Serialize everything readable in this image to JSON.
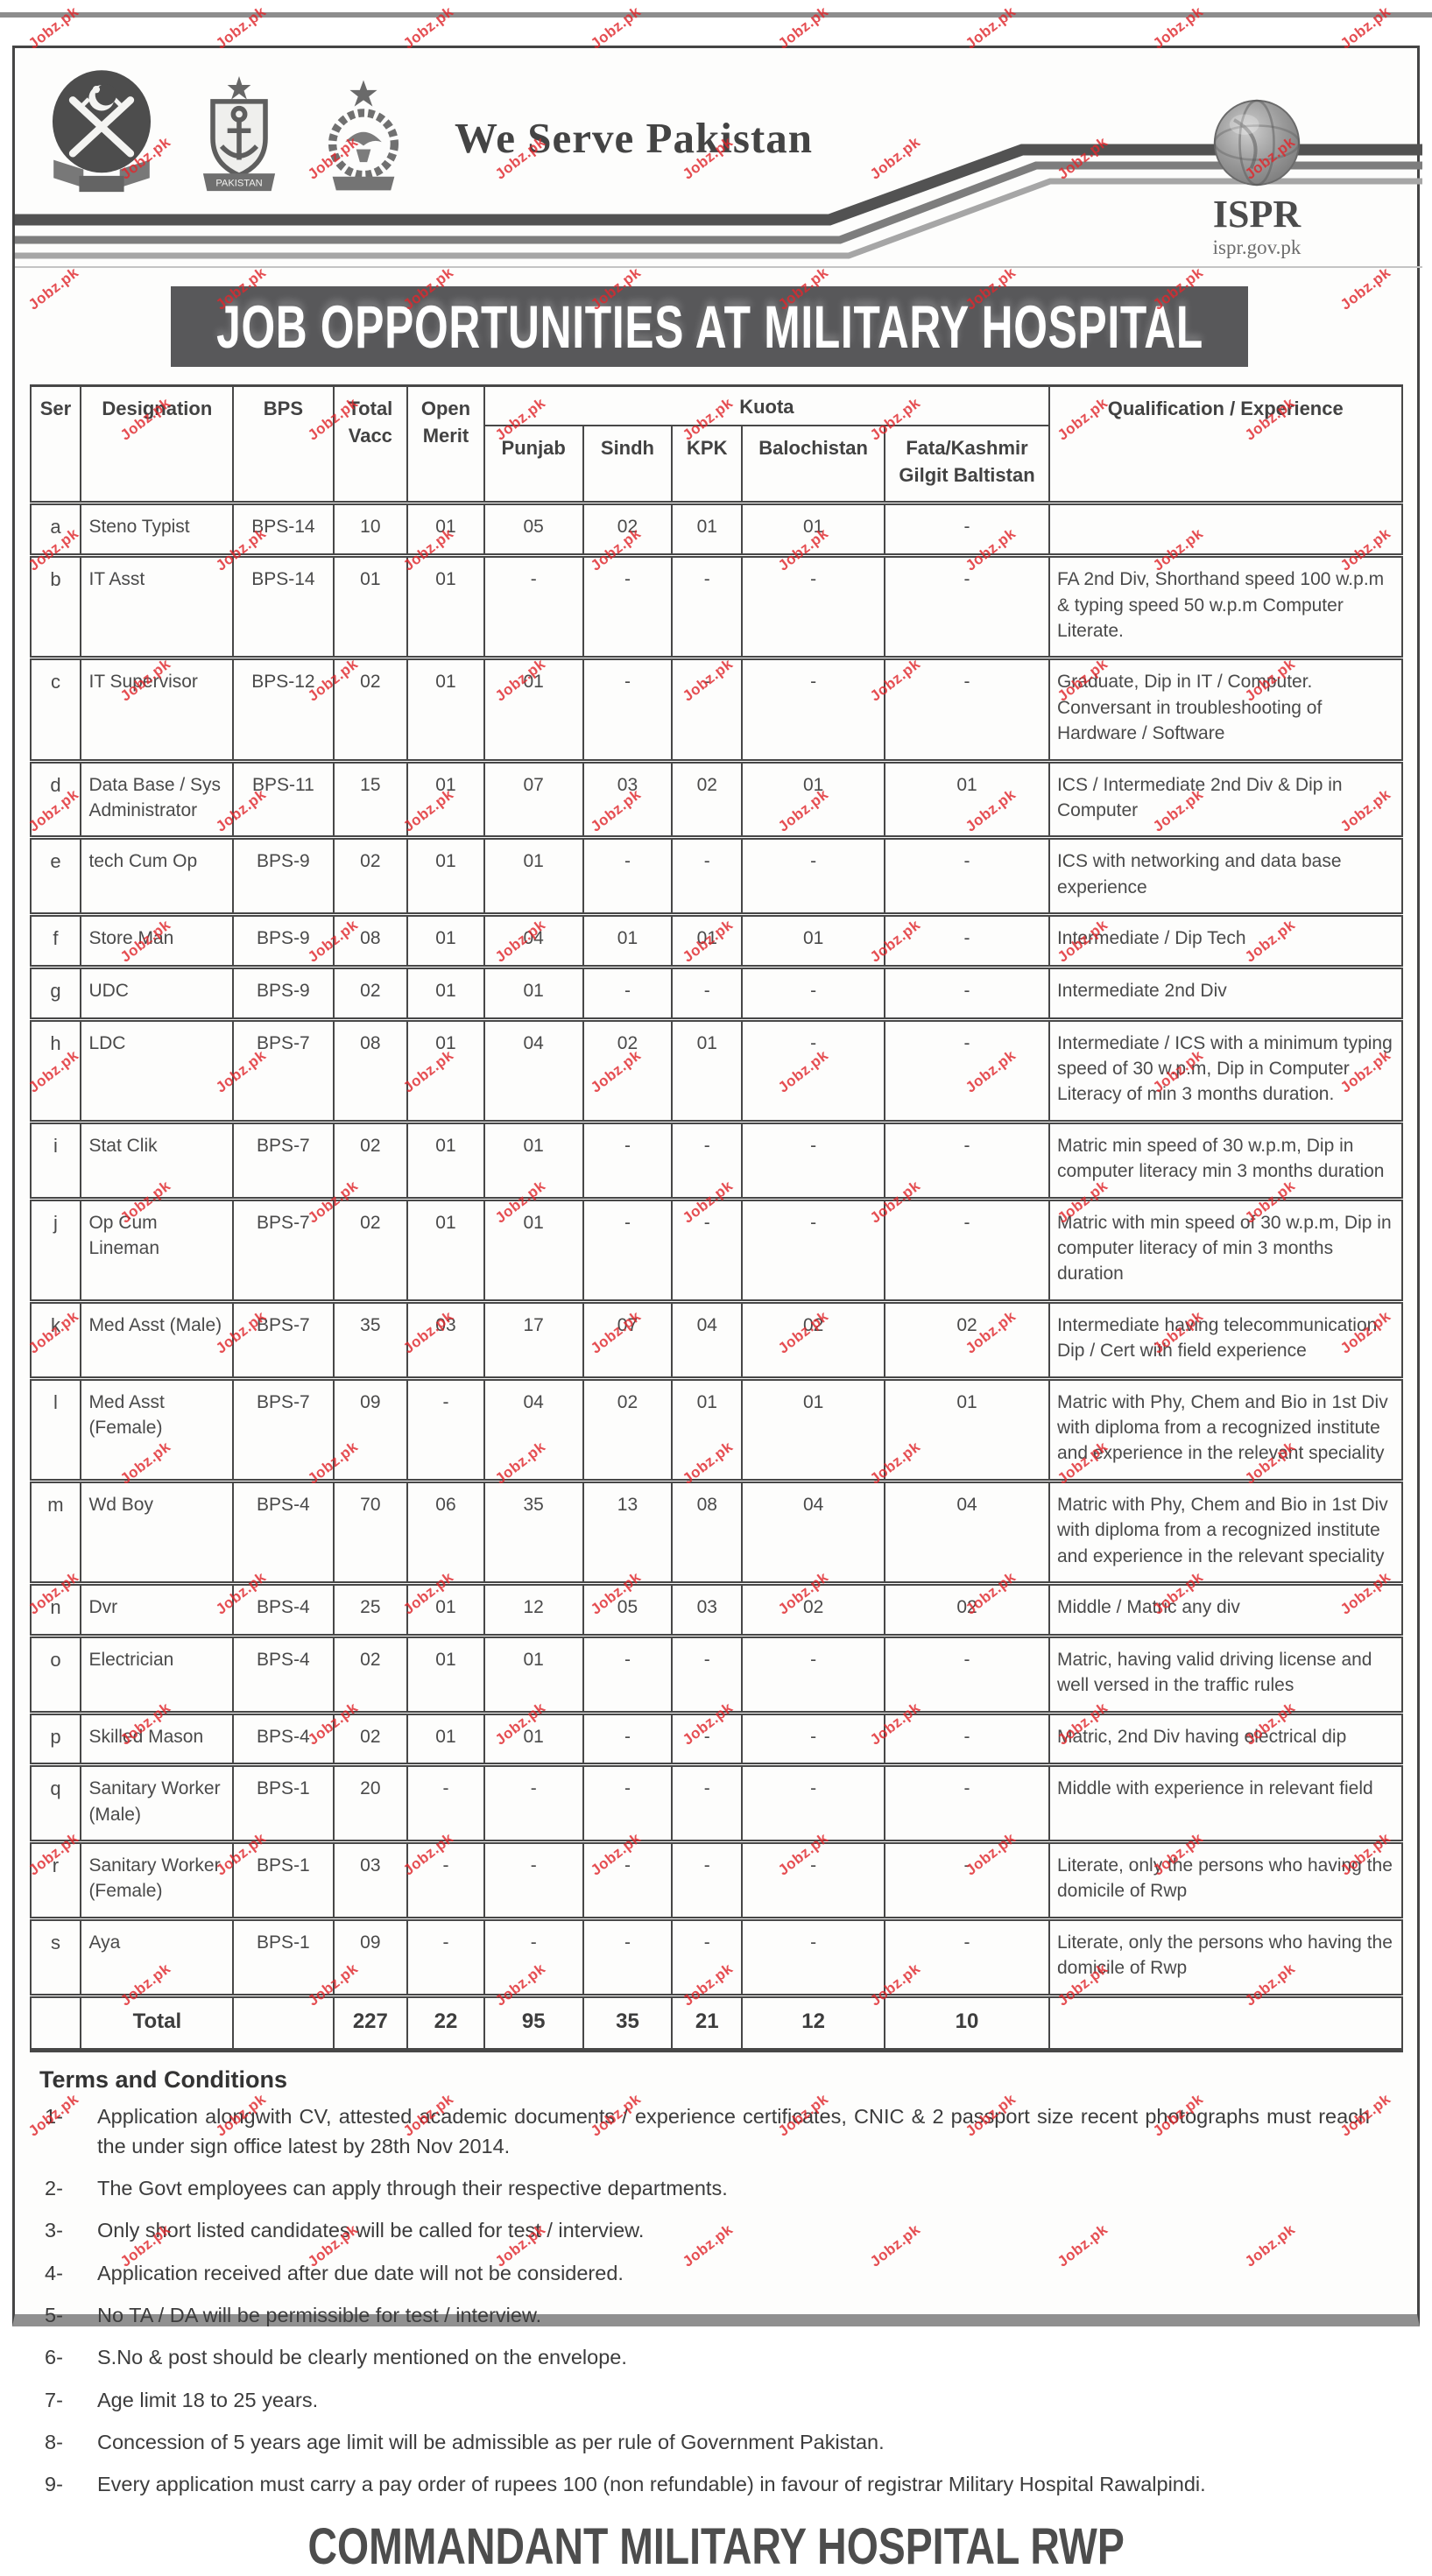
{
  "watermark": {
    "text": "Jobz.pk",
    "color": "#e0282d"
  },
  "header": {
    "motto": "We Serve Pakistan",
    "emblems": [
      "pakistan-army-emblem",
      "pakistan-navy-emblem",
      "pakistan-air-force-emblem"
    ],
    "navy_banner": "PAKISTAN",
    "ispr_name": "ISPR",
    "ispr_url": "ispr.gov.pk"
  },
  "title": "JOB OPPORTUNITIES AT MILITARY HOSPITAL",
  "table": {
    "headers": {
      "ser": "Ser",
      "designation": "Designation",
      "bps": "BPS",
      "total_vacc": "Total Vacc",
      "open_merit": "Open Merit",
      "kuota": "Kuota",
      "punjab": "Punjab",
      "sindh": "Sindh",
      "kpk": "KPK",
      "balochistan": "Balochistan",
      "fata": "Fata/Kashmir Gilgit Baltistan",
      "qualification": "Qualification / Experience"
    },
    "rows": [
      {
        "ser": "a",
        "designation": "Steno Typist",
        "bps": "BPS-14",
        "total_vacc": "10",
        "open_merit": "01",
        "punjab": "05",
        "sindh": "02",
        "kpk": "01",
        "balochistan": "01",
        "fata": "-",
        "qualification": ""
      },
      {
        "ser": "b",
        "designation": "IT Asst",
        "bps": "BPS-14",
        "total_vacc": "01",
        "open_merit": "01",
        "punjab": "-",
        "sindh": "-",
        "kpk": "-",
        "balochistan": "-",
        "fata": "-",
        "qualification": "FA 2nd Div, Shorthand speed 100 w.p.m & typing speed 50 w.p.m Computer Literate."
      },
      {
        "ser": "c",
        "designation": "IT Supervisor",
        "bps": "BPS-12",
        "total_vacc": "02",
        "open_merit": "01",
        "punjab": "01",
        "sindh": "-",
        "kpk": "-",
        "balochistan": "-",
        "fata": "-",
        "qualification": "Graduate, Dip in IT / Computer. Conversant in troubleshooting of Hardware / Software"
      },
      {
        "ser": "d",
        "designation": "Data Base / Sys Administrator",
        "bps": "BPS-11",
        "total_vacc": "15",
        "open_merit": "01",
        "punjab": "07",
        "sindh": "03",
        "kpk": "02",
        "balochistan": "01",
        "fata": "01",
        "qualification": "ICS / Intermediate 2nd Div & Dip in Computer"
      },
      {
        "ser": "e",
        "designation": "tech Cum Op",
        "bps": "BPS-9",
        "total_vacc": "02",
        "open_merit": "01",
        "punjab": "01",
        "sindh": "-",
        "kpk": "-",
        "balochistan": "-",
        "fata": "-",
        "qualification": "ICS with networking and data base experience"
      },
      {
        "ser": "f",
        "designation": "Store Man",
        "bps": "BPS-9",
        "total_vacc": "08",
        "open_merit": "01",
        "punjab": "04",
        "sindh": "01",
        "kpk": "01",
        "balochistan": "01",
        "fata": "-",
        "qualification": "Intermediate / Dip Tech"
      },
      {
        "ser": "g",
        "designation": "UDC",
        "bps": "BPS-9",
        "total_vacc": "02",
        "open_merit": "01",
        "punjab": "01",
        "sindh": "-",
        "kpk": "-",
        "balochistan": "-",
        "fata": "-",
        "qualification": "Intermediate 2nd Div"
      },
      {
        "ser": "h",
        "designation": "LDC",
        "bps": "BPS-7",
        "total_vacc": "08",
        "open_merit": "01",
        "punjab": "04",
        "sindh": "02",
        "kpk": "01",
        "balochistan": "-",
        "fata": "-",
        "qualification": "Intermediate / ICS with a minimum typing speed of 30 w.p.m, Dip in Computer Literacy of min 3 months duration."
      },
      {
        "ser": "i",
        "designation": "Stat Clik",
        "bps": "BPS-7",
        "total_vacc": "02",
        "open_merit": "01",
        "punjab": "01",
        "sindh": "-",
        "kpk": "-",
        "balochistan": "-",
        "fata": "-",
        "qualification": "Matric min speed of 30 w.p.m, Dip in computer literacy min 3 months duration"
      },
      {
        "ser": "j",
        "designation": "Op Cum Lineman",
        "bps": "BPS-7",
        "total_vacc": "02",
        "open_merit": "01",
        "punjab": "01",
        "sindh": "-",
        "kpk": "-",
        "balochistan": "-",
        "fata": "-",
        "qualification": "Matric with min speed of 30 w.p.m, Dip in computer literacy of min 3 months duration"
      },
      {
        "ser": "k",
        "designation": "Med Asst (Male)",
        "bps": "BPS-7",
        "total_vacc": "35",
        "open_merit": "03",
        "punjab": "17",
        "sindh": "07",
        "kpk": "04",
        "balochistan": "02",
        "fata": "02",
        "qualification": "Intermediate having telecommunication Dip / Cert with field experience"
      },
      {
        "ser": "l",
        "designation": "Med Asst (Female)",
        "bps": "BPS-7",
        "total_vacc": "09",
        "open_merit": "-",
        "punjab": "04",
        "sindh": "02",
        "kpk": "01",
        "balochistan": "01",
        "fata": "01",
        "qualification": "Matric with Phy, Chem and Bio in 1st Div with diploma from a recognized institute and experience in the relevant speciality"
      },
      {
        "ser": "m",
        "designation": "Wd Boy",
        "bps": "BPS-4",
        "total_vacc": "70",
        "open_merit": "06",
        "punjab": "35",
        "sindh": "13",
        "kpk": "08",
        "balochistan": "04",
        "fata": "04",
        "qualification": "Matric with Phy, Chem and Bio in 1st Div with diploma from a recognized institute and experience in the relevant speciality"
      },
      {
        "ser": "n",
        "designation": "Dvr",
        "bps": "BPS-4",
        "total_vacc": "25",
        "open_merit": "01",
        "punjab": "12",
        "sindh": "05",
        "kpk": "03",
        "balochistan": "02",
        "fata": "02",
        "qualification": "Middle / Matric any div"
      },
      {
        "ser": "o",
        "designation": "Electrician",
        "bps": "BPS-4",
        "total_vacc": "02",
        "open_merit": "01",
        "punjab": "01",
        "sindh": "-",
        "kpk": "-",
        "balochistan": "-",
        "fata": "-",
        "qualification": "Matric, having valid driving license and well versed in the traffic rules"
      },
      {
        "ser": "p",
        "designation": "Skilled Mason",
        "bps": "BPS-4",
        "total_vacc": "02",
        "open_merit": "01",
        "punjab": "01",
        "sindh": "-",
        "kpk": "-",
        "balochistan": "-",
        "fata": "-",
        "qualification": "Matric, 2nd Div having electrical dip"
      },
      {
        "ser": "q",
        "designation": "Sanitary Worker (Male)",
        "bps": "BPS-1",
        "total_vacc": "20",
        "open_merit": "-",
        "punjab": "-",
        "sindh": "-",
        "kpk": "-",
        "balochistan": "-",
        "fata": "-",
        "qualification": "Middle with experience in relevant field"
      },
      {
        "ser": "r",
        "designation": "Sanitary Worker (Female)",
        "bps": "BPS-1",
        "total_vacc": "03",
        "open_merit": "-",
        "punjab": "-",
        "sindh": "-",
        "kpk": "-",
        "balochistan": "-",
        "fata": "-",
        "qualification": "Literate, only the persons who having the domicile of Rwp"
      },
      {
        "ser": "s",
        "designation": "Aya",
        "bps": "BPS-1",
        "total_vacc": "09",
        "open_merit": "-",
        "punjab": "-",
        "sindh": "-",
        "kpk": "-",
        "balochistan": "-",
        "fata": "-",
        "qualification": "Literate, only the persons who having the domicile of Rwp"
      }
    ],
    "total": {
      "label": "Total",
      "total_vacc": "227",
      "open_merit": "22",
      "punjab": "95",
      "sindh": "35",
      "kpk": "21",
      "balochistan": "12",
      "fata": "10"
    }
  },
  "terms": {
    "heading": "Terms and Conditions",
    "items": [
      {
        "num": "1-",
        "text": "Application alongwith CV, attested academic documents / experience certificates, CNIC & 2 passport size recent photographs must reach the under sign office latest by 28th Nov 2014."
      },
      {
        "num": "2-",
        "text": "The Govt employees can apply through their respective departments."
      },
      {
        "num": "3-",
        "text": "Only short listed candidates will be called for test / interview."
      },
      {
        "num": "4-",
        "text": "Application received after due date will not be considered."
      },
      {
        "num": "5-",
        "text": "No TA / DA will be permissible for test / interview."
      },
      {
        "num": "6-",
        "text": "S.No & post should be clearly mentioned on the envelope."
      },
      {
        "num": "7-",
        "text": "Age limit 18 to 25 years."
      },
      {
        "num": "8-",
        "text": "Concession of 5 years age limit will be admissible as per rule of Government Pakistan."
      },
      {
        "num": "9-",
        "text": "Every application must carry a pay order of rupees 100 (non refundable) in favour of registrar Military Hospital Rawalpindi."
      }
    ]
  },
  "footer": {
    "signature": "COMMANDANT MILITARY HOSPITAL RWP"
  }
}
